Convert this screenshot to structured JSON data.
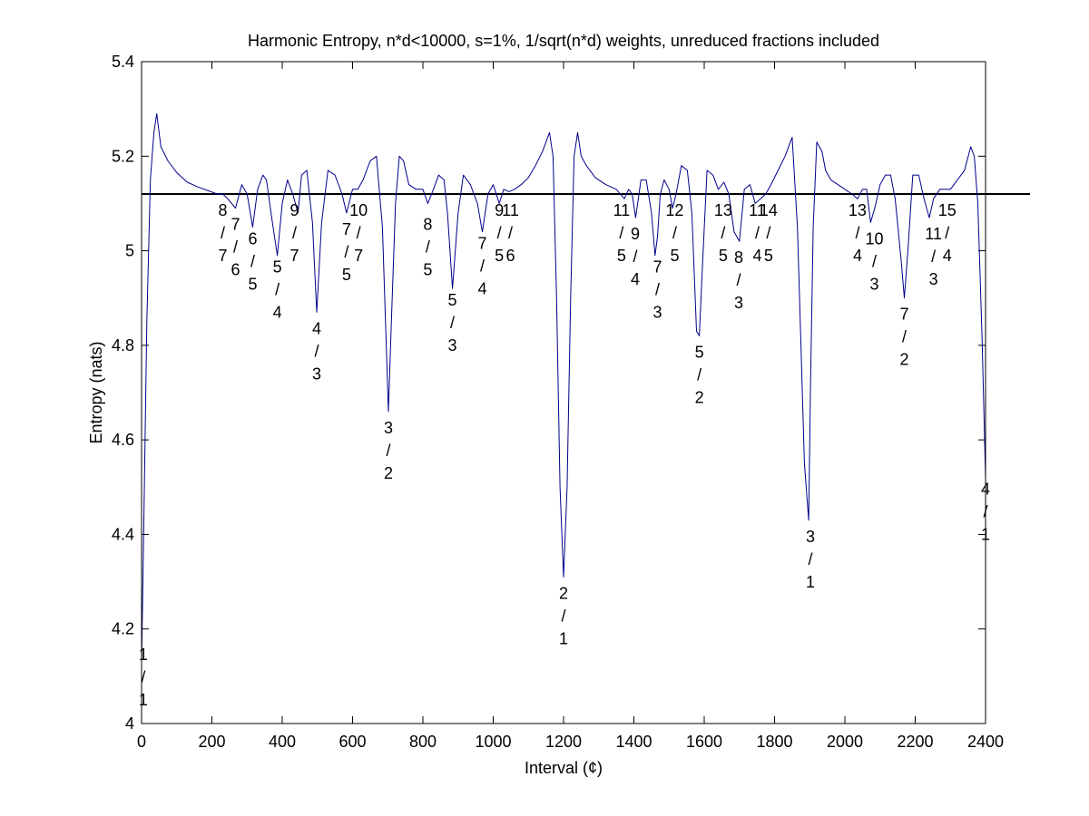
{
  "chart_data": {
    "type": "line",
    "title": "Harmonic Entropy, n*d<10000, s=1%, 1/sqrt(n*d) weights, unreduced fractions included",
    "xlabel": "Interval (¢)",
    "ylabel": "Entropy (nats)",
    "xlim": [
      0,
      2400
    ],
    "ylim": [
      4,
      5.4
    ],
    "xticks": [
      0,
      200,
      400,
      600,
      800,
      1000,
      1200,
      1400,
      1600,
      1800,
      2000,
      2200,
      2400
    ],
    "yticks": [
      4,
      4.2,
      4.4,
      4.6,
      4.8,
      5,
      5.2,
      5.4
    ],
    "xtick_labels": [
      "0",
      "200",
      "400",
      "600",
      "800",
      "1000",
      "1200",
      "1400",
      "1600",
      "1800",
      "2000",
      "2200",
      "2400"
    ],
    "ytick_labels": [
      "4",
      "4.2",
      "4.4",
      "4.6",
      "4.8",
      "5",
      "5.2",
      "5.4"
    ],
    "grid": false,
    "reference_line": {
      "y": 5.12,
      "color": "#000000"
    },
    "series": [
      {
        "color": "#00008b",
        "x": [
          0,
          5,
          15,
          25,
          35,
          43,
          55,
          75,
          100,
          130,
          160,
          190,
          215,
          231,
          245,
          267,
          285,
          300,
          316,
          330,
          345,
          355,
          370,
          386,
          400,
          415,
          430,
          445,
          455,
          470,
          486,
          498,
          512,
          530,
          550,
          570,
          583,
          600,
          615,
          630,
          650,
          668,
          685,
          695,
          702,
          710,
          722,
          733,
          745,
          760,
          780,
          800,
          814,
          830,
          845,
          860,
          870,
          884,
          900,
          915,
          935,
          955,
          969,
          985,
          1000,
          1017,
          1030,
          1045,
          1060,
          1080,
          1100,
          1120,
          1140,
          1160,
          1170,
          1180,
          1190,
          1200,
          1210,
          1220,
          1230,
          1240,
          1250,
          1265,
          1290,
          1320,
          1350,
          1373,
          1385,
          1395,
          1405,
          1420,
          1435,
          1450,
          1460,
          1467,
          1475,
          1486,
          1500,
          1510,
          1520,
          1535,
          1552,
          1565,
          1578,
          1586,
          1595,
          1608,
          1625,
          1640,
          1656,
          1670,
          1685,
          1700,
          1714,
          1730,
          1745,
          1760,
          1775,
          1790,
          1810,
          1830,
          1850,
          1865,
          1875,
          1885,
          1897,
          1902,
          1910,
          1920,
          1935,
          1945,
          1960,
          1980,
          2000,
          2020,
          2036,
          2050,
          2062,
          2073,
          2085,
          2100,
          2115,
          2130,
          2143,
          2160,
          2169,
          2180,
          2193,
          2210,
          2225,
          2240,
          2252,
          2270,
          2283,
          2300,
          2320,
          2340,
          2358,
          2368,
          2378,
          2390,
          2400
        ],
        "values": [
          4.13,
          4.35,
          4.85,
          5.15,
          5.25,
          5.29,
          5.22,
          5.19,
          5.165,
          5.145,
          5.135,
          5.127,
          5.12,
          5.12,
          5.11,
          5.09,
          5.14,
          5.12,
          5.05,
          5.13,
          5.16,
          5.15,
          5.07,
          4.99,
          5.1,
          5.15,
          5.12,
          5.08,
          5.16,
          5.17,
          5.06,
          4.87,
          5.06,
          5.17,
          5.16,
          5.12,
          5.08,
          5.13,
          5.13,
          5.15,
          5.19,
          5.2,
          5.05,
          4.82,
          4.66,
          4.84,
          5.1,
          5.2,
          5.19,
          5.14,
          5.13,
          5.13,
          5.1,
          5.13,
          5.16,
          5.15,
          5.08,
          4.92,
          5.08,
          5.16,
          5.14,
          5.1,
          5.04,
          5.12,
          5.14,
          5.1,
          5.13,
          5.125,
          5.13,
          5.14,
          5.155,
          5.18,
          5.21,
          5.25,
          5.2,
          4.9,
          4.5,
          4.31,
          4.5,
          4.9,
          5.2,
          5.25,
          5.2,
          5.18,
          5.155,
          5.14,
          5.13,
          5.11,
          5.13,
          5.12,
          5.07,
          5.15,
          5.15,
          5.08,
          4.99,
          5.03,
          5.12,
          5.15,
          5.13,
          5.09,
          5.12,
          5.18,
          5.17,
          5.08,
          4.83,
          4.82,
          4.97,
          5.17,
          5.16,
          5.13,
          5.145,
          5.12,
          5.04,
          5.02,
          5.13,
          5.14,
          5.1,
          5.11,
          5.12,
          5.14,
          5.17,
          5.2,
          5.24,
          5.05,
          4.8,
          4.55,
          4.43,
          4.7,
          5.05,
          5.23,
          5.21,
          5.17,
          5.15,
          5.14,
          5.13,
          5.12,
          5.11,
          5.13,
          5.13,
          5.06,
          5.09,
          5.14,
          5.16,
          5.16,
          5.11,
          4.98,
          4.9,
          5.01,
          5.16,
          5.16,
          5.11,
          5.07,
          5.11,
          5.13,
          5.13,
          5.13,
          5.15,
          5.17,
          5.22,
          5.2,
          5.1,
          4.82,
          4.52
        ]
      }
    ],
    "annotations": [
      {
        "text": [
          "1",
          "/",
          "1"
        ],
        "x": 5,
        "y": 4.18
      },
      {
        "text": [
          "8",
          "/",
          "7"
        ],
        "x": 231,
        "y": 5.12
      },
      {
        "text": [
          "7",
          "/",
          "6"
        ],
        "x": 267,
        "y": 5.09
      },
      {
        "text": [
          "6",
          "/",
          "5"
        ],
        "x": 316,
        "y": 5.06
      },
      {
        "text": [
          "5",
          "/",
          "4"
        ],
        "x": 386,
        "y": 5.0
      },
      {
        "text": [
          "9",
          "/",
          "7"
        ],
        "x": 435,
        "y": 5.12
      },
      {
        "text": [
          "4",
          "/",
          "3"
        ],
        "x": 498,
        "y": 4.87
      },
      {
        "text": [
          "7",
          "/",
          "5"
        ],
        "x": 583,
        "y": 5.08
      },
      {
        "text": [
          "10",
          "/",
          "7"
        ],
        "x": 617,
        "y": 5.12
      },
      {
        "text": [
          "3",
          "/",
          "2"
        ],
        "x": 702,
        "y": 4.66
      },
      {
        "text": [
          "8",
          "/",
          "5"
        ],
        "x": 814,
        "y": 5.09
      },
      {
        "text": [
          "5",
          "/",
          "3"
        ],
        "x": 884,
        "y": 4.93
      },
      {
        "text": [
          "7",
          "/",
          "4"
        ],
        "x": 969,
        "y": 5.05
      },
      {
        "text": [
          "9",
          "/",
          "5"
        ],
        "x": 1017,
        "y": 5.12
      },
      {
        "text": [
          "11",
          "/",
          "6"
        ],
        "x": 1049,
        "y": 5.12
      },
      {
        "text": [
          "2",
          "/",
          "1"
        ],
        "x": 1200,
        "y": 4.31
      },
      {
        "text": [
          "11",
          "/",
          "5"
        ],
        "x": 1365,
        "y": 5.12
      },
      {
        "text": [
          "9",
          "/",
          "4"
        ],
        "x": 1404,
        "y": 5.07
      },
      {
        "text": [
          "7",
          "/",
          "3"
        ],
        "x": 1467,
        "y": 5.0
      },
      {
        "text": [
          "12",
          "/",
          "5"
        ],
        "x": 1516,
        "y": 5.12
      },
      {
        "text": [
          "5",
          "/",
          "2"
        ],
        "x": 1586,
        "y": 4.82
      },
      {
        "text": [
          "13",
          "/",
          "5"
        ],
        "x": 1654,
        "y": 5.12
      },
      {
        "text": [
          "8",
          "/",
          "3"
        ],
        "x": 1698,
        "y": 5.02
      },
      {
        "text": [
          "11",
          "/",
          "4"
        ],
        "x": 1751,
        "y": 5.12
      },
      {
        "text": [
          "14",
          "/",
          "5"
        ],
        "x": 1783,
        "y": 5.12
      },
      {
        "text": [
          "3",
          "/",
          "1"
        ],
        "x": 1902,
        "y": 4.43
      },
      {
        "text": [
          "13",
          "/",
          "4"
        ],
        "x": 2036,
        "y": 5.12
      },
      {
        "text": [
          "10",
          "/",
          "3"
        ],
        "x": 2084,
        "y": 5.06
      },
      {
        "text": [
          "7",
          "/",
          "2"
        ],
        "x": 2169,
        "y": 4.9
      },
      {
        "text": [
          "11",
          "/",
          "3"
        ],
        "x": 2252,
        "y": 5.07
      },
      {
        "text": [
          "15",
          "/",
          "4"
        ],
        "x": 2291,
        "y": 5.12
      },
      {
        "text": [
          "4",
          "/",
          "1"
        ],
        "x": 2400,
        "y": 4.53
      }
    ]
  }
}
